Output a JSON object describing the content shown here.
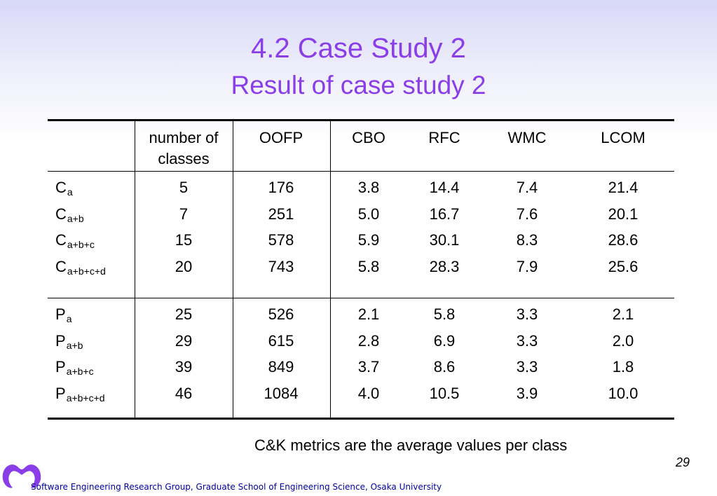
{
  "slide": {
    "title": "4.2 Case Study 2",
    "subtitle": "Result of case study 2",
    "note": "C&K metrics are the average values per class",
    "page_number": "29",
    "footer": "Software Engineering Research Group, Graduate School of Engineering Science, Osaka University"
  },
  "table": {
    "headers": [
      "number of classes",
      "OOFP",
      "CBO",
      "RFC",
      "WMC",
      "LCOM"
    ],
    "header_lines": [
      [
        "number of",
        "classes"
      ],
      [
        "OOFP"
      ],
      [
        "CBO"
      ],
      [
        "RFC"
      ],
      [
        "WMC"
      ],
      [
        "LCOM"
      ]
    ],
    "groups": [
      {
        "rows": [
          {
            "base": "C",
            "sub": "a",
            "values": [
              "5",
              "176",
              "3.8",
              "14.4",
              "7.4",
              "21.4"
            ]
          },
          {
            "base": "C",
            "sub": "a+b",
            "values": [
              "7",
              "251",
              "5.0",
              "16.7",
              "7.6",
              "20.1"
            ]
          },
          {
            "base": "C",
            "sub": "a+b+c",
            "values": [
              "15",
              "578",
              "5.9",
              "30.1",
              "8.3",
              "28.6"
            ]
          },
          {
            "base": "C",
            "sub": "a+b+c+d",
            "values": [
              "20",
              "743",
              "5.8",
              "28.3",
              "7.9",
              "25.6"
            ]
          }
        ]
      },
      {
        "rows": [
          {
            "base": "P",
            "sub": "a",
            "values": [
              "25",
              "526",
              "2.1",
              "5.8",
              "3.3",
              "2.1"
            ]
          },
          {
            "base": "P",
            "sub": "a+b",
            "values": [
              "29",
              "615",
              "2.8",
              "6.9",
              "3.3",
              "2.0"
            ]
          },
          {
            "base": "P",
            "sub": "a+b+c",
            "values": [
              "39",
              "849",
              "3.7",
              "8.6",
              "3.3",
              "1.8"
            ]
          },
          {
            "base": "P",
            "sub": "a+b+c+d",
            "values": [
              "46",
              "1084",
              "4.0",
              "10.5",
              "3.9",
              "10.0"
            ]
          }
        ]
      }
    ]
  },
  "colors": {
    "title": "#8a3ee8",
    "footer_text": "#0000a0",
    "logo": "#8a3ee8"
  }
}
